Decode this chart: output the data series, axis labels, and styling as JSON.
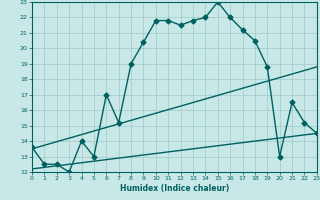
{
  "title": "",
  "xlabel": "Humidex (Indice chaleur)",
  "bg_color": "#c8e8e8",
  "line_color": "#006060",
  "grid_color": "#a0c8c8",
  "xlim": [
    0,
    23
  ],
  "ylim": [
    12,
    23
  ],
  "xticks": [
    0,
    1,
    2,
    3,
    4,
    5,
    6,
    7,
    8,
    9,
    10,
    11,
    12,
    13,
    14,
    15,
    16,
    17,
    18,
    19,
    20,
    21,
    22,
    23
  ],
  "yticks": [
    12,
    13,
    14,
    15,
    16,
    17,
    18,
    19,
    20,
    21,
    22,
    23
  ],
  "line1_x": [
    0,
    1,
    2,
    3,
    4,
    5,
    6,
    7,
    8,
    9,
    10,
    11,
    12,
    13,
    14,
    15,
    16,
    17,
    18,
    19,
    20,
    21,
    22,
    23
  ],
  "line1_y": [
    13.6,
    12.5,
    12.5,
    12.0,
    14.0,
    13.0,
    17.0,
    15.2,
    19.0,
    20.4,
    21.8,
    21.8,
    21.5,
    21.8,
    22.0,
    23.0,
    22.0,
    21.2,
    20.5,
    18.8,
    13.0,
    16.5,
    15.2,
    14.5
  ],
  "line2_x": [
    0,
    23
  ],
  "line2_y": [
    13.5,
    18.8
  ],
  "line3_x": [
    0,
    23
  ],
  "line3_y": [
    12.2,
    14.5
  ],
  "marker": "D",
  "markersize": 2.5,
  "linewidth": 1.0
}
